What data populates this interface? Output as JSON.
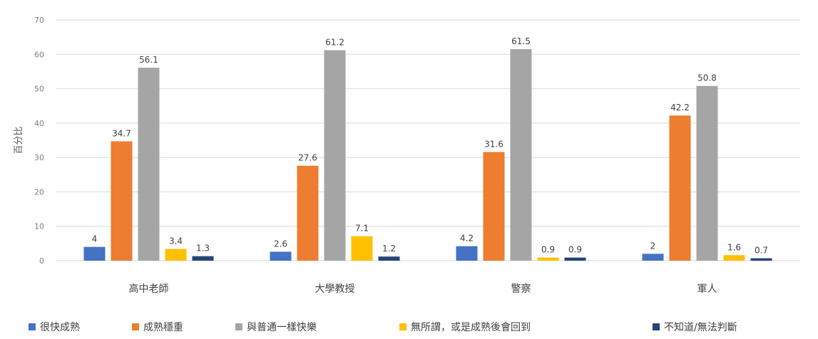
{
  "chart_data": {
    "type": "bar",
    "ylabel": "百分比",
    "ylim": [
      0,
      70
    ],
    "yticks": [
      "0",
      "10",
      "20",
      "30",
      "40",
      "50",
      "60",
      "70"
    ],
    "grid": true,
    "legend_position": "bottom",
    "categories": [
      "高中老師",
      "大學教授",
      "警察",
      "軍人"
    ],
    "series": [
      {
        "name": "很快成熟",
        "color": "#4472c4",
        "values": [
          4,
          2.6,
          4.2,
          2
        ],
        "labels": [
          "4",
          "2.6",
          "4.2",
          "2"
        ]
      },
      {
        "name": "成熟穩重",
        "color": "#ed7d31",
        "values": [
          34.7,
          27.6,
          31.6,
          42.2
        ],
        "labels": [
          "34.7",
          "27.6",
          "31.6",
          "42.2"
        ]
      },
      {
        "name": "與普通一樣快樂",
        "color": "#a5a5a5",
        "values": [
          56.1,
          61.2,
          61.5,
          50.8
        ],
        "labels": [
          "56.1",
          "61.2",
          "61.5",
          "50.8"
        ]
      },
      {
        "name": "無所謂，或是成熟後會回到",
        "color": "#ffc000",
        "values": [
          3.4,
          7.1,
          0.9,
          1.6
        ],
        "labels": [
          "3.4",
          "7.1",
          "0.9",
          "1.6"
        ]
      },
      {
        "name": "不知道/無法判斷",
        "color": "#264478",
        "values": [
          1.3,
          1.2,
          0.9,
          0.7
        ],
        "labels": [
          "1.3",
          "1.2",
          "0.9",
          "0.7"
        ]
      }
    ]
  }
}
